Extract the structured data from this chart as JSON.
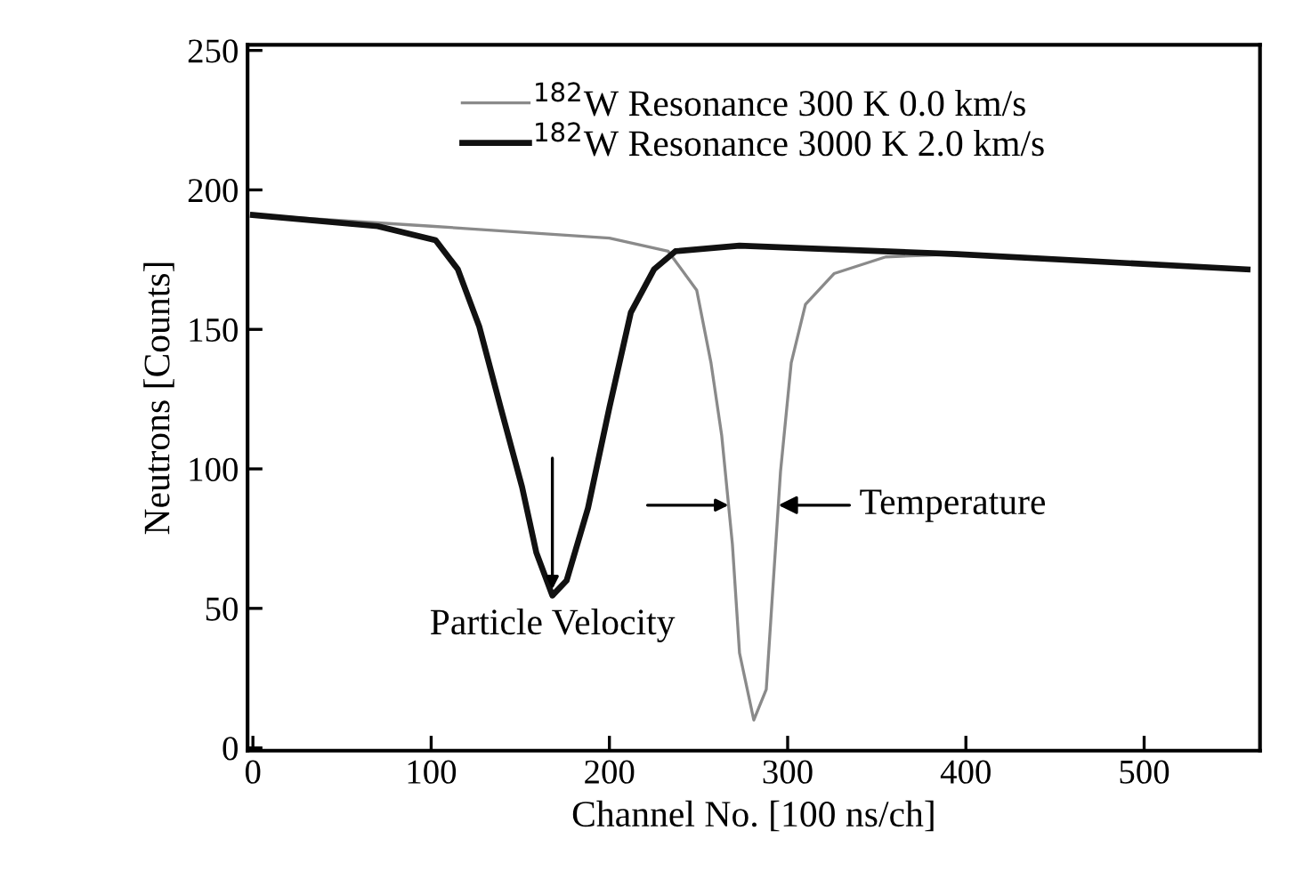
{
  "chart_data": {
    "type": "line",
    "xlabel": "Channel No. [100 ns/ch]",
    "ylabel": "Neutrons [Counts]",
    "xlim": [
      -3,
      565
    ],
    "ylim": [
      -1,
      252
    ],
    "xticks": [
      0,
      100,
      200,
      300,
      400,
      500
    ],
    "yticks": [
      0,
      50,
      100,
      150,
      200,
      250
    ],
    "grid": false,
    "legend": "top",
    "line_style": "solid",
    "marker": "none",
    "series": [
      {
        "name": "$^{182}$W Resonance 300 K 0.0 km/s",
        "color": "#8a8a8a",
        "x": [
          0,
          100,
          200,
          233,
          249,
          257,
          263,
          269,
          273,
          281,
          288,
          292,
          296,
          302,
          310,
          326,
          355,
          395,
          558
        ],
        "values": [
          191,
          187,
          182.7,
          178,
          164,
          138,
          112,
          73,
          34,
          10,
          21,
          60,
          99,
          138,
          159,
          170,
          176,
          177,
          171.5
        ]
      },
      {
        "name": "$^{182}$W Resonance 3000 K 2.0 km/s",
        "color": "#111111",
        "x": [
          0,
          70,
          102.5,
          115,
          127,
          139,
          151,
          159,
          168,
          176,
          188,
          200,
          212,
          225,
          237,
          273,
          314,
          395,
          558
        ],
        "values": [
          191,
          187,
          182,
          171.5,
          151,
          122,
          93.5,
          70,
          54.6,
          60,
          86,
          122,
          156,
          171.5,
          178,
          180,
          179,
          177,
          171.5
        ]
      }
    ],
    "annotations": [
      {
        "text": "Particle Velocity",
        "x": 168,
        "y": 55
      },
      {
        "text": "Temperature",
        "x": 294.8,
        "y": 87
      }
    ]
  }
}
